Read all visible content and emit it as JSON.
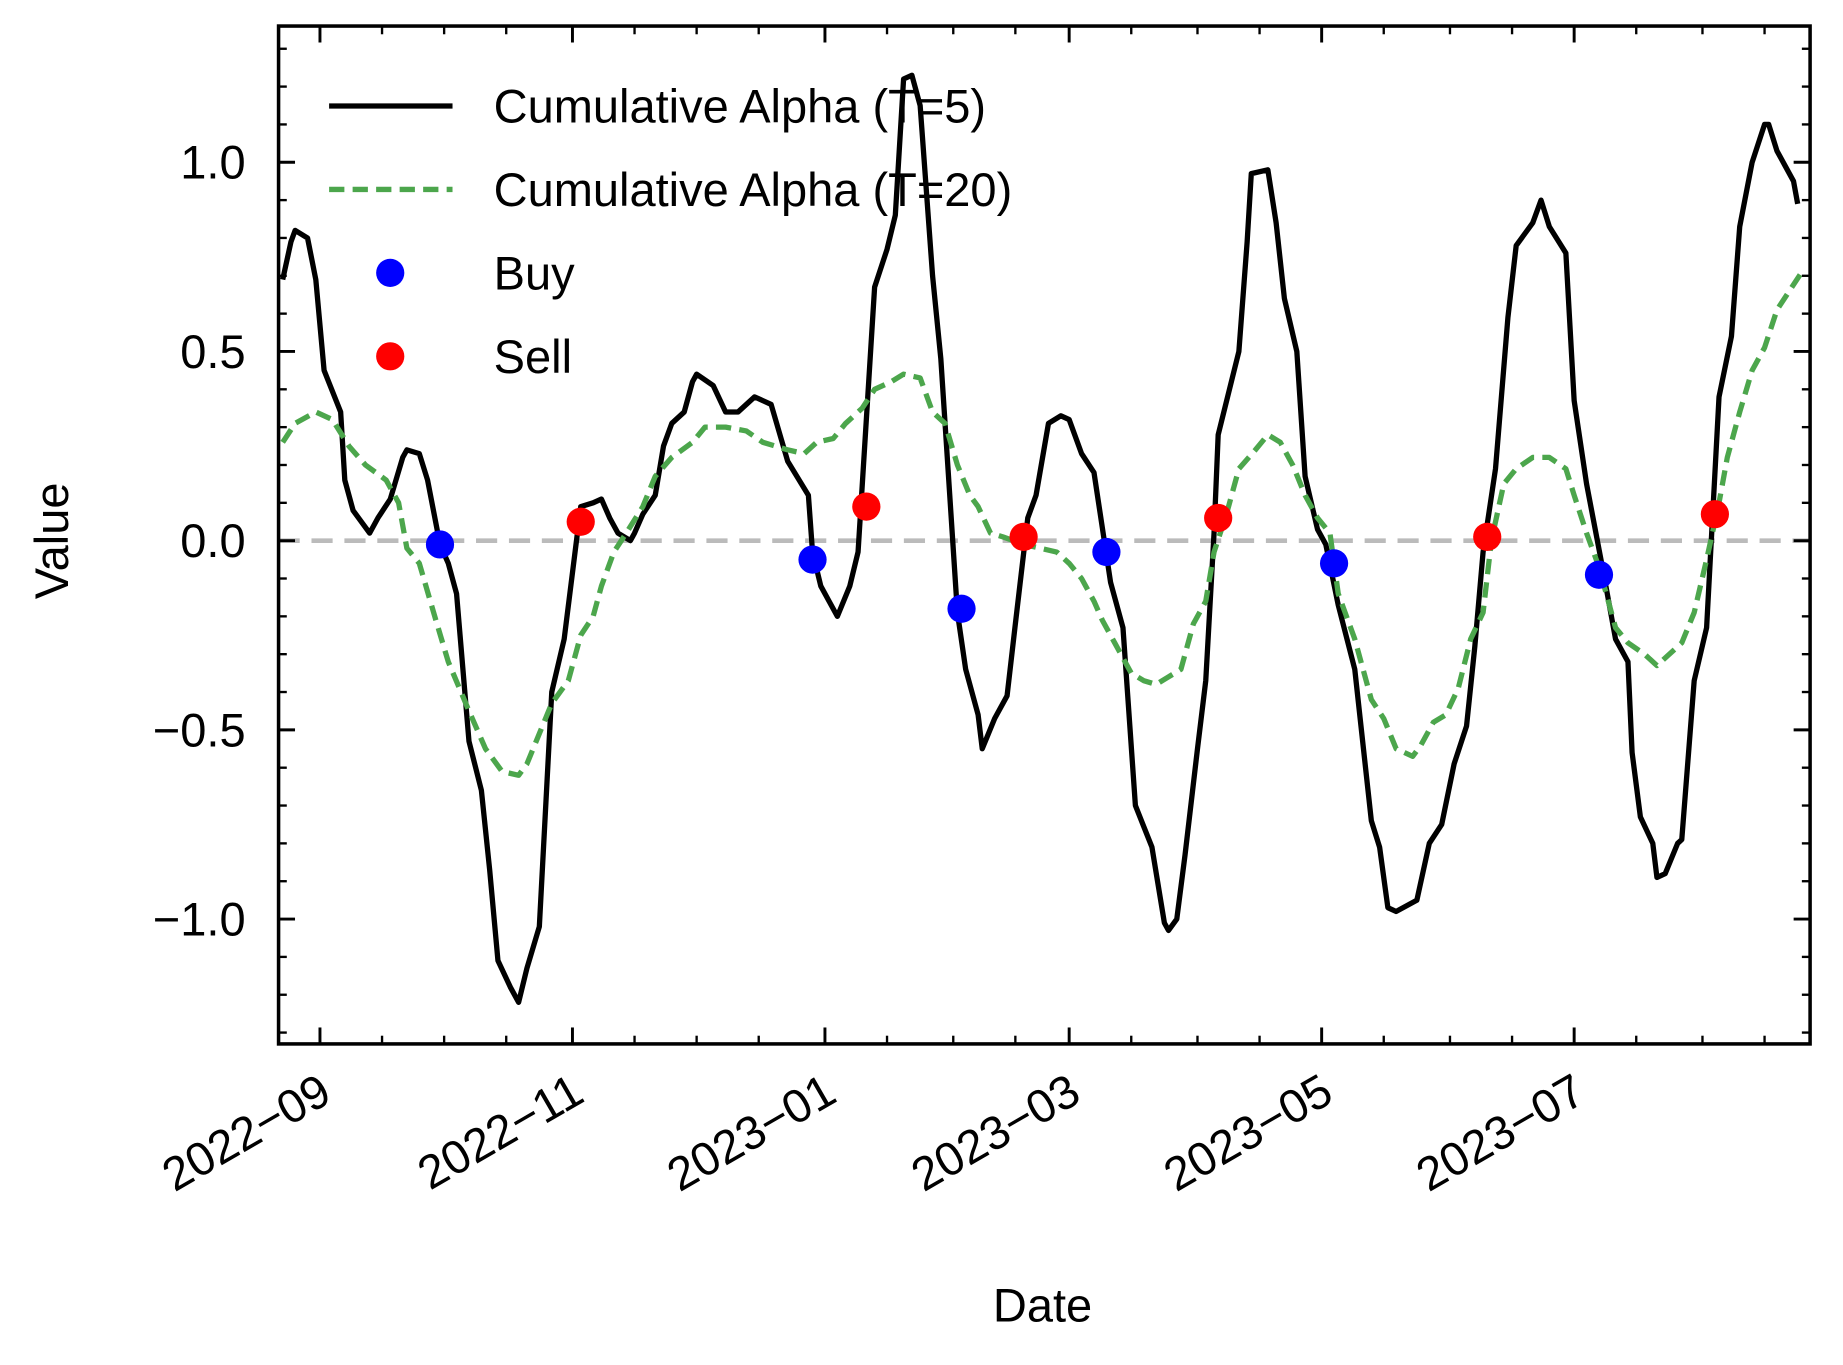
{
  "chart_data": {
    "type": "line",
    "xlabel": "Date",
    "ylabel": "Value",
    "xlim": [
      "2022-08-22",
      "2023-08-27"
    ],
    "ylim": [
      -1.33,
      1.36
    ],
    "xticks": [
      {
        "value": "2022-09-01",
        "label": "2022−09"
      },
      {
        "value": "2022-11-01",
        "label": "2022−11"
      },
      {
        "value": "2023-01-01",
        "label": "2023−01"
      },
      {
        "value": "2023-03-01",
        "label": "2023−03"
      },
      {
        "value": "2023-05-01",
        "label": "2023−05"
      },
      {
        "value": "2023-07-01",
        "label": "2023−07"
      }
    ],
    "xminorticks": [
      "2022-09-16",
      "2022-10-01",
      "2022-10-16",
      "2022-11-16",
      "2022-12-01",
      "2022-12-16",
      "2023-01-16",
      "2023-02-01",
      "2023-02-16",
      "2023-03-16",
      "2023-04-01",
      "2023-04-16",
      "2023-05-16",
      "2023-06-01",
      "2023-06-16",
      "2023-07-16",
      "2023-08-01",
      "2023-08-16"
    ],
    "yticks": [
      {
        "value": -1,
        "label": "−1.0"
      },
      {
        "value": -0.5,
        "label": "−0.5"
      },
      {
        "value": 0,
        "label": "0.0"
      },
      {
        "value": 0.5,
        "label": "0.5"
      },
      {
        "value": 1,
        "label": "1.0"
      }
    ],
    "yminorticks": [
      -1.3,
      -1.2,
      -1.1,
      -0.9,
      -0.8,
      -0.7,
      -0.6,
      -0.4,
      -0.3,
      -0.2,
      -0.1,
      0.1,
      0.2,
      0.3,
      0.4,
      0.6,
      0.7,
      0.8,
      0.9,
      1.1,
      1.2,
      1.3
    ],
    "hline": 0,
    "hline_color": "#bbbbbb",
    "legend": "upper left",
    "series": [
      {
        "name": "Cumulative Alpha (T=5)",
        "mode": "line",
        "dash": false,
        "color": "#000000",
        "x": [
          "2022-08-23",
          "2022-08-25",
          "2022-08-26",
          "2022-08-29",
          "2022-08-31",
          "2022-09-02",
          "2022-09-06",
          "2022-09-07",
          "2022-09-09",
          "2022-09-13",
          "2022-09-15",
          "2022-09-18",
          "2022-09-21",
          "2022-09-22",
          "2022-09-25",
          "2022-09-27",
          "2022-09-30",
          "2022-10-02",
          "2022-10-04",
          "2022-10-07",
          "2022-10-10",
          "2022-10-12",
          "2022-10-14",
          "2022-10-17",
          "2022-10-19",
          "2022-10-21",
          "2022-10-24",
          "2022-10-27",
          "2022-10-30",
          "2022-11-03",
          "2022-11-06",
          "2022-11-08",
          "2022-11-10",
          "2022-11-12",
          "2022-11-15",
          "2022-11-16",
          "2022-11-18",
          "2022-11-21",
          "2022-11-23",
          "2022-11-25",
          "2022-11-28",
          "2022-11-30",
          "2022-12-01",
          "2022-12-05",
          "2022-12-08",
          "2022-12-11",
          "2022-12-15",
          "2022-12-19",
          "2022-12-23",
          "2022-12-28",
          "2022-12-29",
          "2022-12-31",
          "2023-01-02",
          "2023-01-04",
          "2023-01-07",
          "2023-01-09",
          "2023-01-13",
          "2023-01-16",
          "2023-01-18",
          "2023-01-20",
          "2023-01-22",
          "2023-01-24",
          "2023-01-27",
          "2023-01-29",
          "2023-02-02",
          "2023-02-04",
          "2023-02-07",
          "2023-02-08",
          "2023-02-11",
          "2023-02-14",
          "2023-02-16",
          "2023-02-19",
          "2023-02-21",
          "2023-02-24",
          "2023-02-27",
          "2023-03-01",
          "2023-03-04",
          "2023-03-07",
          "2023-03-11",
          "2023-03-14",
          "2023-03-17",
          "2023-03-21",
          "2023-03-24",
          "2023-03-25",
          "2023-03-27",
          "2023-03-29",
          "2023-04-01",
          "2023-04-03",
          "2023-04-05",
          "2023-04-06",
          "2023-04-11",
          "2023-04-13",
          "2023-04-14",
          "2023-04-18",
          "2023-04-20",
          "2023-04-22",
          "2023-04-25",
          "2023-04-27",
          "2023-04-30",
          "2023-05-02",
          "2023-05-05",
          "2023-05-09",
          "2023-05-13",
          "2023-05-15",
          "2023-05-17",
          "2023-05-19",
          "2023-05-24",
          "2023-05-27",
          "2023-05-30",
          "2023-06-02",
          "2023-06-05",
          "2023-06-07",
          "2023-06-09",
          "2023-06-12",
          "2023-06-15",
          "2023-06-17",
          "2023-06-21",
          "2023-06-23",
          "2023-06-25",
          "2023-06-29",
          "2023-07-01",
          "2023-07-04",
          "2023-07-08",
          "2023-07-11",
          "2023-07-14",
          "2023-07-15",
          "2023-07-17",
          "2023-07-20",
          "2023-07-21",
          "2023-07-23",
          "2023-07-26",
          "2023-07-27",
          "2023-07-30",
          "2023-08-02",
          "2023-08-05",
          "2023-08-08",
          "2023-08-10",
          "2023-08-13",
          "2023-08-16",
          "2023-08-17",
          "2023-08-19",
          "2023-08-21",
          "2023-08-23",
          "2023-08-24"
        ],
        "values": [
          0.69,
          0.79,
          0.82,
          0.8,
          0.69,
          0.45,
          0.34,
          0.16,
          0.08,
          0.02,
          0.06,
          0.11,
          0.22,
          0.24,
          0.23,
          0.16,
          -0.01,
          -0.06,
          -0.14,
          -0.53,
          -0.66,
          -0.87,
          -1.11,
          -1.18,
          -1.22,
          -1.13,
          -1.02,
          -0.4,
          -0.26,
          0.09,
          0.1,
          0.11,
          0.06,
          0.02,
          0.0,
          0.02,
          0.07,
          0.12,
          0.25,
          0.31,
          0.34,
          0.42,
          0.44,
          0.41,
          0.34,
          0.34,
          0.38,
          0.36,
          0.21,
          0.12,
          -0.03,
          -0.12,
          -0.16,
          -0.2,
          -0.12,
          -0.03,
          0.67,
          0.77,
          0.86,
          1.22,
          1.23,
          1.15,
          0.7,
          0.48,
          -0.19,
          -0.34,
          -0.46,
          -0.55,
          -0.47,
          -0.41,
          -0.22,
          0.06,
          0.12,
          0.31,
          0.33,
          0.32,
          0.23,
          0.18,
          -0.11,
          -0.23,
          -0.7,
          -0.81,
          -1.01,
          -1.03,
          -1.0,
          -0.83,
          -0.55,
          -0.37,
          0.02,
          0.28,
          0.5,
          0.79,
          0.97,
          0.98,
          0.84,
          0.64,
          0.5,
          0.17,
          0.03,
          -0.01,
          -0.17,
          -0.34,
          -0.74,
          -0.81,
          -0.97,
          -0.98,
          -0.95,
          -0.8,
          -0.75,
          -0.59,
          -0.49,
          -0.28,
          -0.03,
          0.19,
          0.59,
          0.78,
          0.84,
          0.9,
          0.83,
          0.76,
          0.37,
          0.15,
          -0.08,
          -0.26,
          -0.32,
          -0.56,
          -0.73,
          -0.8,
          -0.89,
          -0.88,
          -0.8,
          -0.79,
          -0.37,
          -0.23,
          0.38,
          0.54,
          0.83,
          1.0,
          1.1,
          1.1,
          1.03,
          0.99,
          0.95,
          0.89
        ]
      },
      {
        "name": "Cumulative Alpha (T=20)",
        "mode": "line",
        "dash": true,
        "color": "#4ca64c",
        "x": [
          "2022-08-23",
          "2022-08-26",
          "2022-08-31",
          "2022-09-04",
          "2022-09-08",
          "2022-09-12",
          "2022-09-17",
          "2022-09-20",
          "2022-09-22",
          "2022-09-25",
          "2022-09-29",
          "2022-10-02",
          "2022-10-07",
          "2022-10-11",
          "2022-10-15",
          "2022-10-19",
          "2022-10-21",
          "2022-10-24",
          "2022-10-27",
          "2022-10-31",
          "2022-11-03",
          "2022-11-06",
          "2022-11-08",
          "2022-11-11",
          "2022-11-14",
          "2022-11-18",
          "2022-11-21",
          "2022-11-25",
          "2022-11-30",
          "2022-12-03",
          "2022-12-08",
          "2022-12-13",
          "2022-12-17",
          "2022-12-23",
          "2022-12-27",
          "2022-12-30",
          "2023-01-03",
          "2023-01-06",
          "2023-01-10",
          "2023-01-13",
          "2023-01-17",
          "2023-01-20",
          "2023-01-24",
          "2023-01-27",
          "2023-01-30",
          "2023-02-02",
          "2023-02-05",
          "2023-02-07",
          "2023-02-10",
          "2023-02-13",
          "2023-02-18",
          "2023-02-22",
          "2023-02-26",
          "2023-03-01",
          "2023-03-04",
          "2023-03-07",
          "2023-03-09",
          "2023-03-12",
          "2023-03-16",
          "2023-03-19",
          "2023-03-22",
          "2023-03-25",
          "2023-03-28",
          "2023-03-31",
          "2023-04-03",
          "2023-04-05",
          "2023-04-08",
          "2023-04-11",
          "2023-04-15",
          "2023-04-18",
          "2023-04-21",
          "2023-04-24",
          "2023-04-27",
          "2023-04-30",
          "2023-05-03",
          "2023-05-05",
          "2023-05-09",
          "2023-05-13",
          "2023-05-16",
          "2023-05-19",
          "2023-05-23",
          "2023-05-25",
          "2023-05-28",
          "2023-05-31",
          "2023-06-03",
          "2023-06-06",
          "2023-06-09",
          "2023-06-11",
          "2023-06-14",
          "2023-06-17",
          "2023-06-21",
          "2023-06-25",
          "2023-06-29",
          "2023-07-01",
          "2023-07-04",
          "2023-07-07",
          "2023-07-11",
          "2023-07-14",
          "2023-07-18",
          "2023-07-21",
          "2023-07-24",
          "2023-07-27",
          "2023-07-30",
          "2023-08-02",
          "2023-08-05",
          "2023-08-07",
          "2023-08-10",
          "2023-08-13",
          "2023-08-16",
          "2023-08-19",
          "2023-08-22",
          "2023-08-25"
        ],
        "values": [
          0.26,
          0.31,
          0.34,
          0.32,
          0.25,
          0.2,
          0.16,
          0.1,
          -0.02,
          -0.06,
          -0.21,
          -0.32,
          -0.45,
          -0.55,
          -0.61,
          -0.62,
          -0.59,
          -0.51,
          -0.43,
          -0.37,
          -0.25,
          -0.2,
          -0.12,
          -0.03,
          0.02,
          0.09,
          0.17,
          0.22,
          0.26,
          0.3,
          0.3,
          0.29,
          0.26,
          0.24,
          0.23,
          0.26,
          0.27,
          0.31,
          0.35,
          0.4,
          0.42,
          0.44,
          0.43,
          0.34,
          0.31,
          0.2,
          0.12,
          0.09,
          0.02,
          0.01,
          -0.01,
          -0.02,
          -0.03,
          -0.06,
          -0.1,
          -0.16,
          -0.21,
          -0.27,
          -0.35,
          -0.37,
          -0.38,
          -0.36,
          -0.34,
          -0.22,
          -0.16,
          -0.03,
          0.07,
          0.19,
          0.24,
          0.28,
          0.26,
          0.2,
          0.12,
          0.06,
          0.02,
          -0.14,
          -0.26,
          -0.42,
          -0.47,
          -0.55,
          -0.57,
          -0.54,
          -0.48,
          -0.46,
          -0.39,
          -0.26,
          -0.19,
          0.0,
          0.15,
          0.19,
          0.22,
          0.22,
          0.19,
          0.12,
          0.02,
          -0.07,
          -0.23,
          -0.27,
          -0.3,
          -0.33,
          -0.3,
          -0.27,
          -0.19,
          -0.05,
          0.1,
          0.22,
          0.34,
          0.45,
          0.51,
          0.61,
          0.66,
          0.71
        ]
      },
      {
        "name": "Buy",
        "mode": "scatter",
        "color": "#0000ff",
        "x": [
          "2022-09-30",
          "2022-12-29",
          "2023-02-03",
          "2023-03-10",
          "2023-05-04",
          "2023-07-07"
        ],
        "values": [
          -0.01,
          -0.05,
          -0.18,
          -0.03,
          -0.06,
          -0.09
        ]
      },
      {
        "name": "Sell",
        "mode": "scatter",
        "color": "#ff0000",
        "x": [
          "2022-11-03",
          "2023-01-11",
          "2023-02-18",
          "2023-04-06",
          "2023-06-10",
          "2023-08-04"
        ],
        "values": [
          0.05,
          0.09,
          0.01,
          0.06,
          0.01,
          0.07
        ]
      }
    ]
  }
}
